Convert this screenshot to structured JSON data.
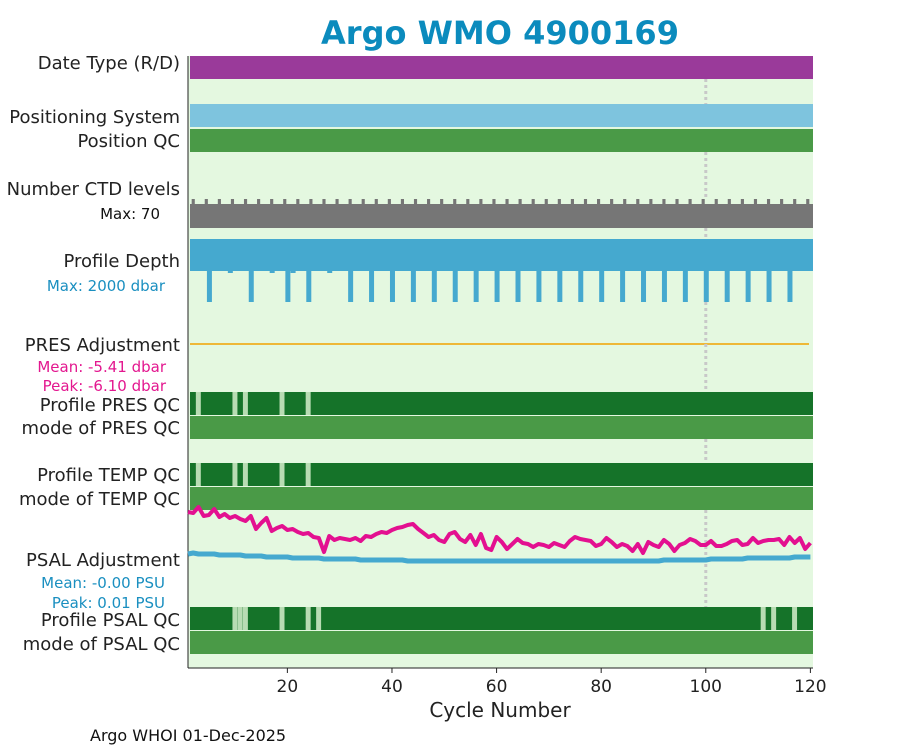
{
  "title": "Argo WMO 4900169",
  "footer": "Argo WHOI 01-Dec-2025",
  "colors": {
    "title": "#0b8bbd",
    "background": "#e4f8e0",
    "date_type": "#9a3a9a",
    "positioning": "#7ec4de",
    "qc_good": "#4a9a47",
    "qc_profile_dark": "#157329",
    "qc_profile_light": "#b8dcb3",
    "ctd": "#767676",
    "depth": "#45a9cf",
    "pres_line": "#eeb838",
    "psal_adj": "#45a9cf",
    "temp_trace": "#e31090",
    "info_blue": "#1a8fc0",
    "info_magenta": "#e3178f",
    "ref_line": "#c8c8c8"
  },
  "rows": {
    "date_type": "Date Type (R/D)",
    "positioning_system": "Positioning System",
    "position_qc": "Position QC",
    "number_ctd": "Number CTD levels",
    "ctd_max": "Max: 70",
    "profile_depth": "Profile Depth",
    "depth_max": "Max: 2000 dbar",
    "pres_adjustment": "PRES Adjustment",
    "pres_mean": "Mean: -5.41 dbar",
    "pres_peak": "Peak: -6.10 dbar",
    "profile_pres_qc": "Profile PRES QC",
    "mode_pres_qc": "mode of PRES QC",
    "profile_temp_qc": "Profile TEMP QC",
    "mode_temp_qc": "mode of TEMP QC",
    "psal_adjustment": "PSAL Adjustment",
    "psal_mean": "Mean: -0.00 PSU",
    "psal_peak": "Peak: 0.01 PSU",
    "profile_psal_qc": "Profile PSAL QC",
    "mode_psal_qc": "mode of PSAL QC"
  },
  "chart_data": {
    "type": "line",
    "xlabel": "Cycle Number",
    "xlim": [
      1,
      120.5
    ],
    "xticks": [
      20,
      40,
      60,
      80,
      100,
      120
    ],
    "reference_cycle": 100,
    "pres_qc_light_cycles": [
      3,
      10,
      12,
      19,
      24
    ],
    "temp_qc_light_cycles": [
      3,
      10,
      12,
      19,
      24
    ],
    "psal_qc_light_cycles": [
      10,
      11,
      12,
      19,
      24,
      26,
      111,
      113,
      117
    ],
    "depth_short_cycles": [
      5,
      9,
      13,
      17,
      20,
      21,
      24,
      28,
      32,
      36,
      40,
      44,
      48,
      52,
      56,
      60,
      64,
      68,
      72,
      76,
      80,
      84,
      88,
      92,
      96,
      100,
      104,
      108,
      112,
      116
    ],
    "temp_trace_offsets": [
      5,
      6,
      0,
      9,
      8,
      2,
      10,
      7,
      11,
      9,
      12,
      14,
      9,
      22,
      16,
      11,
      24,
      21,
      19,
      23,
      22,
      25,
      27,
      26,
      30,
      31,
      45,
      29,
      33,
      31,
      32,
      33,
      31,
      34,
      29,
      30,
      27,
      25,
      26,
      23,
      21,
      20,
      18,
      17,
      22,
      26,
      30,
      28,
      33,
      35,
      27,
      25,
      32,
      35,
      28,
      38,
      27,
      41,
      43,
      30,
      35,
      42,
      37,
      32,
      36,
      37,
      40,
      37,
      38,
      40,
      36,
      38,
      40,
      34,
      30,
      32,
      33,
      34,
      39,
      37,
      31,
      35,
      40,
      37,
      39,
      44,
      37,
      46,
      35,
      38,
      40,
      33,
      37,
      44,
      38,
      36,
      32,
      34,
      38,
      38,
      34,
      39,
      39,
      37,
      34,
      33,
      38,
      37,
      31,
      36,
      34,
      33,
      33,
      32,
      38,
      30,
      36,
      31,
      42,
      36
    ],
    "psal_adj_offsets": [
      -5,
      -6,
      -5,
      -5,
      -5,
      -5,
      -4,
      -4,
      -4,
      -4,
      -4,
      -3,
      -3,
      -3,
      -3,
      -2,
      -2,
      -2,
      -2,
      -2,
      -1,
      -1,
      -1,
      -1,
      -1,
      -1,
      0,
      0,
      0,
      0,
      0,
      0,
      0,
      1,
      1,
      1,
      1,
      1,
      1,
      1,
      1,
      1,
      2,
      2,
      2,
      2,
      2,
      2,
      2,
      2,
      2,
      2,
      2,
      2,
      2,
      2,
      2,
      2,
      2,
      2,
      2,
      2,
      2,
      2,
      2,
      2,
      2,
      2,
      2,
      2,
      2,
      2,
      2,
      2,
      2,
      2,
      2,
      2,
      2,
      2,
      2,
      2,
      2,
      2,
      2,
      2,
      2,
      2,
      2,
      2,
      2,
      1,
      1,
      1,
      1,
      1,
      1,
      1,
      1,
      1,
      0,
      0,
      0,
      0,
      0,
      0,
      0,
      -1,
      -1,
      -1,
      -1,
      -1,
      -1,
      -1,
      -1,
      -1,
      -2,
      -2,
      -2,
      -2
    ]
  }
}
